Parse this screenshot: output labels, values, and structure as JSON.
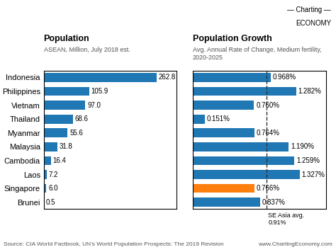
{
  "chart_data": [
    {
      "type": "bar",
      "orientation": "horizontal",
      "title": "Population",
      "subtitle": "ASEAN, Million, July 2018 est.",
      "categories": [
        "Indonesia",
        "Philippines",
        "Vietnam",
        "Thailand",
        "Myanmar",
        "Malaysia",
        "Cambodia",
        "Laos",
        "Singapore",
        "Brunei"
      ],
      "values": [
        262.8,
        105.9,
        97.0,
        68.6,
        55.6,
        31.8,
        16.4,
        7.2,
        6.0,
        0.5
      ],
      "color": "#1f77b4",
      "xlim": [
        0,
        310
      ],
      "data_labels": true,
      "tick_labels": "y",
      "annotations": [
        "Source: CIA World Factbook, UN’s World Population Prospects: The 2019 Revision"
      ]
    },
    {
      "type": "bar",
      "orientation": "horizontal",
      "title": "Population Growth",
      "subtitle": "Avg. Annual Rate of Change, Medium fertility, 2020-2025",
      "categories": [
        "Indonesia",
        "Philippines",
        "Vietnam",
        "Thailand",
        "Myanmar",
        "Malaysia",
        "Cambodia",
        "Laos",
        "Singapore",
        "Brunei"
      ],
      "values": [
        0.968,
        1.282,
        0.76,
        0.151,
        0.764,
        1.19,
        1.259,
        1.327,
        0.766,
        0.837
      ],
      "value_labels": [
        "0.968%",
        "1.282%",
        "0.760%",
        "0.151%",
        "0.764%",
        "1.190%",
        "1.259%",
        "1.327%",
        "0.766%",
        "0.837%"
      ],
      "colors": [
        "#1f77b4",
        "#1f77b4",
        "#1f77b4",
        "#1f77b4",
        "#1f77b4",
        "#1f77b4",
        "#1f77b4",
        "#1f77b4",
        "#ff7f0e",
        "#1f77b4"
      ],
      "xlim": [
        0,
        1.65
      ],
      "data_labels": true,
      "tick_labels": false,
      "reference_line": {
        "value": 0.91,
        "label": "SE Asia avg.\n0.91%",
        "color": "#333333"
      },
      "annotations": [
        "www.ChartingEconomy.com",
        "— Charting —",
        "ECONOMY"
      ]
    }
  ]
}
